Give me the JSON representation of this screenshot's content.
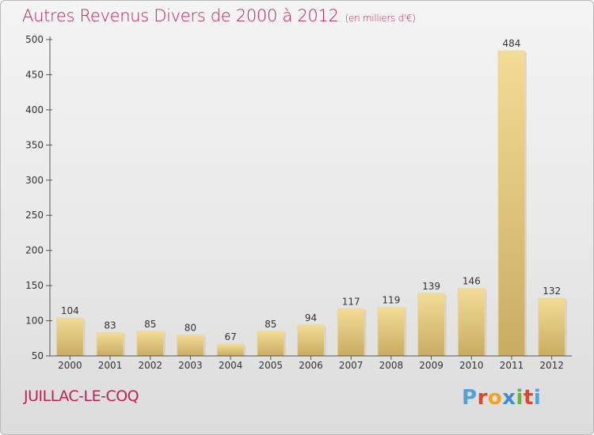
{
  "header": {
    "title": "Autres Revenus Divers de 2000 à 2012",
    "subtitle": "(en milliers d'€)"
  },
  "footer": {
    "location": "JUILLAC-LE-COQ",
    "brand_letters": [
      "P",
      "r",
      "o",
      "x",
      "i",
      "t",
      "i"
    ],
    "brand_colors": [
      "#4fa3d9",
      "#e0452a",
      "#f2a21c",
      "#3a8fd0",
      "#6bb33a",
      "#e0452a",
      "#4fa3d9"
    ]
  },
  "colors": {
    "accent": "#c0204f",
    "bar_light": "#f3dc96",
    "bar_dark": "#c9ac62",
    "axis": "#555555",
    "grid": "#8a8a8a"
  },
  "chart_data": {
    "type": "bar",
    "categories": [
      "2000",
      "2001",
      "2002",
      "2003",
      "2004",
      "2005",
      "2006",
      "2007",
      "2008",
      "2009",
      "2010",
      "2011",
      "2012"
    ],
    "values": [
      104,
      83,
      85,
      80,
      67,
      85,
      94,
      117,
      119,
      139,
      146,
      484,
      132
    ],
    "ylim": [
      50,
      500
    ],
    "yticks": [
      50,
      100,
      150,
      200,
      250,
      300,
      350,
      400,
      450,
      500
    ],
    "grid": false,
    "data_labels": true
  }
}
